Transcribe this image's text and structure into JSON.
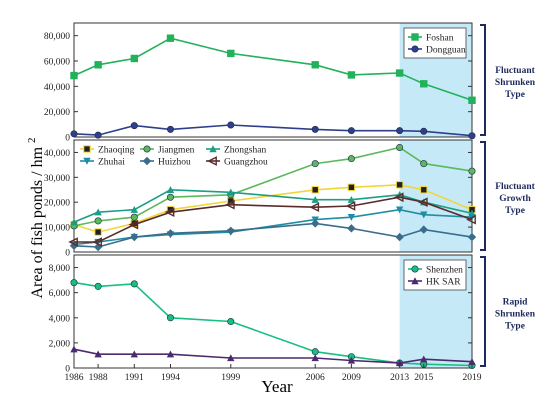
{
  "chart_data": [
    {
      "type": "line",
      "x": [
        1986,
        1988,
        1991,
        1994,
        1999,
        2006,
        2009,
        2013,
        2015,
        2019
      ],
      "ylim": [
        0,
        90000
      ],
      "yticks": [
        0,
        20000,
        40000,
        60000,
        80000
      ],
      "ytick_labels": [
        "0",
        "20,000",
        "40,000",
        "60,000",
        "80,000"
      ],
      "highlight_from": 2013,
      "group_label": [
        "Fluctuant",
        "Shrunken",
        "Type"
      ],
      "legend_position": "top-right",
      "series": [
        {
          "name": "Foshan",
          "color": "#21b25a",
          "marker": "square",
          "values": [
            48500,
            57000,
            62000,
            78000,
            66000,
            57000,
            49000,
            50500,
            42000,
            29000
          ]
        },
        {
          "name": "Dongguan",
          "color": "#2f3f8c",
          "marker": "circle",
          "values": [
            2500,
            1500,
            9000,
            6000,
            9500,
            6000,
            5000,
            5000,
            4500,
            1000
          ]
        }
      ]
    },
    {
      "type": "line",
      "x": [
        1986,
        1988,
        1991,
        1994,
        1999,
        2006,
        2009,
        2013,
        2015,
        2019
      ],
      "ylim": [
        0,
        45000
      ],
      "yticks": [
        0,
        10000,
        20000,
        30000,
        40000
      ],
      "ytick_labels": [
        "0",
        "10,000",
        "20,000",
        "30,000",
        "40,000"
      ],
      "highlight_from": 2013,
      "group_label": [
        "Fluctuant",
        "Growth",
        "Type"
      ],
      "legend_position": "top-left",
      "series": [
        {
          "name": "Zhaoqing",
          "color": "#f1d63a",
          "marker": "square-dot",
          "values": [
            11000,
            8000,
            11500,
            17000,
            20500,
            25000,
            26000,
            27000,
            25000,
            17000
          ]
        },
        {
          "name": "Jiangmen",
          "color": "#5cb85c",
          "marker": "circle",
          "values": [
            10500,
            12500,
            14000,
            22000,
            23000,
            35500,
            37500,
            42000,
            35500,
            32500
          ]
        },
        {
          "name": "Zhongshan",
          "color": "#1a9e86",
          "marker": "triangle",
          "values": [
            12000,
            16000,
            17000,
            25000,
            24000,
            21000,
            21000,
            23000,
            20000,
            15500
          ]
        },
        {
          "name": "Zhuhai",
          "color": "#1f8da4",
          "marker": "down-triangle",
          "values": [
            3000,
            4000,
            6000,
            7000,
            8000,
            13000,
            14000,
            17000,
            15000,
            14000
          ]
        },
        {
          "name": "Huizhou",
          "color": "#3a6d8c",
          "marker": "diamond",
          "values": [
            2500,
            2000,
            6000,
            7500,
            8500,
            11500,
            9500,
            6000,
            9000,
            6000
          ]
        },
        {
          "name": "Guangzhou",
          "color": "#5a2d2d",
          "marker": "left-triangle",
          "values": [
            4000,
            4000,
            11000,
            16000,
            19000,
            18000,
            18500,
            22000,
            20000,
            13000
          ]
        }
      ]
    },
    {
      "type": "line",
      "x": [
        1986,
        1988,
        1991,
        1994,
        1999,
        2006,
        2009,
        2013,
        2015,
        2019
      ],
      "ylim": [
        0,
        9000
      ],
      "yticks": [
        0,
        2000,
        4000,
        6000,
        8000
      ],
      "ytick_labels": [
        "0",
        "2,000",
        "4,000",
        "6,000",
        "8,000"
      ],
      "highlight_from": 2013,
      "group_label": [
        "Rapid",
        "Shrunken",
        "Type"
      ],
      "legend_position": "top-right",
      "series": [
        {
          "name": "Shenzhen",
          "color": "#17c07f",
          "marker": "circle",
          "values": [
            6800,
            6500,
            6700,
            4000,
            3700,
            1300,
            900,
            400,
            300,
            200
          ]
        },
        {
          "name": "HK SAR",
          "color": "#4b2a6e",
          "marker": "up-triangle",
          "values": [
            1500,
            1100,
            1100,
            1100,
            800,
            800,
            600,
            400,
            700,
            500
          ]
        }
      ]
    }
  ],
  "axes": {
    "xlabel": "Year",
    "ylabel": "Area of fish ponds / hm",
    "ylabel_sup": "2",
    "x_categories": [
      "1986",
      "1988",
      "1991",
      "1994",
      "1999",
      "2006",
      "2009",
      "2013",
      "2015",
      "2019"
    ]
  },
  "colors": {
    "highlight": "#c6e9f7",
    "bracket": "#1f2a5c",
    "axis": "#333333"
  }
}
